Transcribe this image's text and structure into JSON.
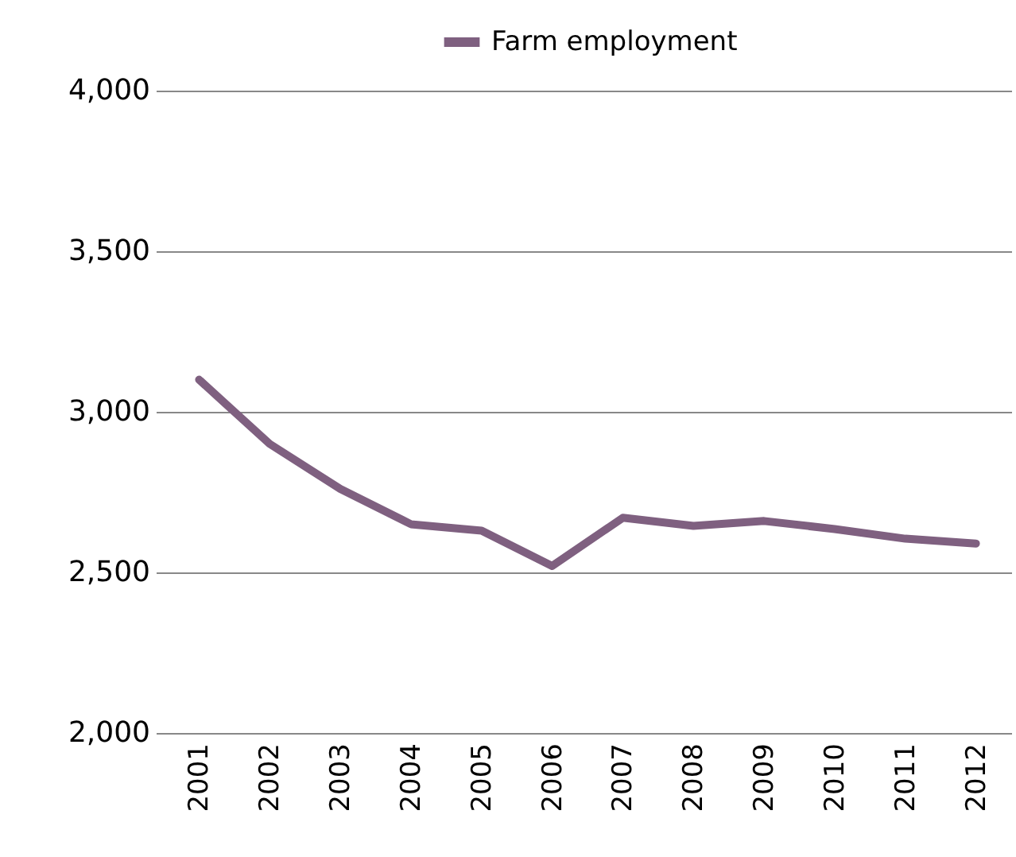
{
  "chart_data": {
    "type": "line",
    "categories": [
      "2001",
      "2002",
      "2003",
      "2004",
      "2005",
      "2006",
      "2007",
      "2008",
      "2009",
      "2010",
      "2011",
      "2012"
    ],
    "series": [
      {
        "name": "Farm employment",
        "color": "#7f6080",
        "values": [
          3100,
          2900,
          2760,
          2650,
          2630,
          2520,
          2670,
          2645,
          2660,
          2635,
          2605,
          2590
        ]
      }
    ],
    "ylim": [
      2000,
      4000
    ],
    "yticks": [
      {
        "value": 2000,
        "label": "2,000"
      },
      {
        "value": 2500,
        "label": "2,500"
      },
      {
        "value": 3000,
        "label": "3,000"
      },
      {
        "value": 3500,
        "label": "3,500"
      },
      {
        "value": 4000,
        "label": "4,000"
      }
    ],
    "grid": "y",
    "legend": "top",
    "marker": "none"
  }
}
